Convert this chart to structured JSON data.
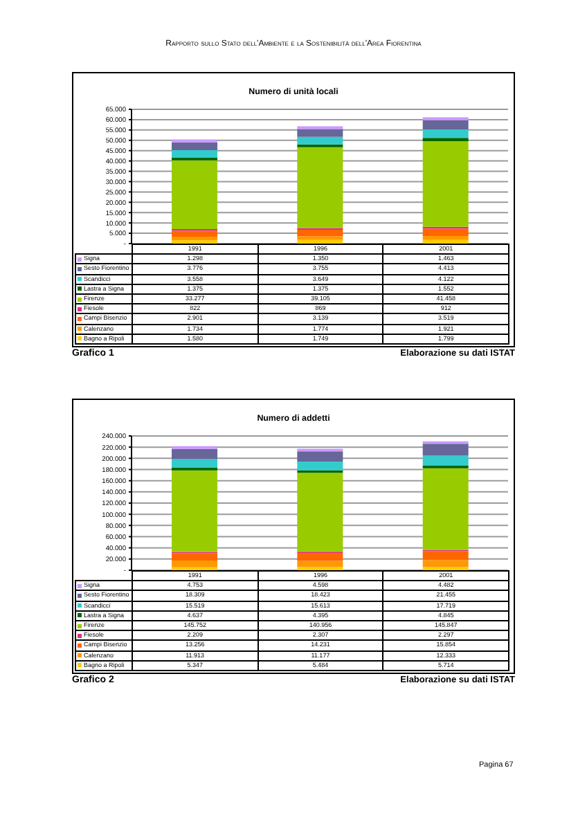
{
  "chart_data": [
    {
      "type": "bar",
      "stacked": true,
      "title": "Numero di unità locali",
      "categories": [
        "1991",
        "1996",
        "2001"
      ],
      "series": [
        {
          "name": "Bagno a Ripoli",
          "color": "#ffcc00",
          "values": [
            1580,
            1749,
            1799
          ],
          "value_labels": [
            "1.580",
            "1.749",
            "1.799"
          ]
        },
        {
          "name": "Calenzano",
          "color": "#ff9900",
          "values": [
            1734,
            1774,
            1921
          ],
          "value_labels": [
            "1.734",
            "1.774",
            "1.921"
          ]
        },
        {
          "name": "Campi Bisenzio",
          "color": "#ff6600",
          "values": [
            2901,
            3139,
            3519
          ],
          "value_labels": [
            "2.901",
            "3.139",
            "3.519"
          ]
        },
        {
          "name": "Fiesole",
          "color": "#e0307a",
          "values": [
            822,
            869,
            912
          ],
          "value_labels": [
            "822",
            "869",
            "912"
          ]
        },
        {
          "name": "Firenze",
          "color": "#99cc00",
          "values": [
            33277,
            39105,
            41458
          ],
          "value_labels": [
            "33.277",
            "39.105",
            "41.458"
          ]
        },
        {
          "name": "Lastra a Signa",
          "color": "#006600",
          "values": [
            1375,
            1375,
            1552
          ],
          "value_labels": [
            "1.375",
            "1.375",
            "1.552"
          ]
        },
        {
          "name": "Scandicci",
          "color": "#33cccc",
          "values": [
            3558,
            3649,
            4122
          ],
          "value_labels": [
            "3.558",
            "3.649",
            "4.122"
          ]
        },
        {
          "name": "Sesto Fiorentino",
          "color": "#666699",
          "values": [
            3776,
            3755,
            4413
          ],
          "value_labels": [
            "3.776",
            "3.755",
            "4.413"
          ]
        },
        {
          "name": "Signa",
          "color": "#cc99ff",
          "values": [
            1298,
            1350,
            1463
          ],
          "value_labels": [
            "1.298",
            "1.350",
            "1.463"
          ]
        }
      ],
      "ylim": [
        0,
        65000
      ],
      "yticks": [
        {
          "value": 0,
          "label": "-"
        },
        {
          "value": 5000,
          "label": "5.000"
        },
        {
          "value": 10000,
          "label": "10.000"
        },
        {
          "value": 15000,
          "label": "15.000"
        },
        {
          "value": 20000,
          "label": "20.000"
        },
        {
          "value": 25000,
          "label": "25.000"
        },
        {
          "value": 30000,
          "label": "30.000"
        },
        {
          "value": 35000,
          "label": "35.000"
        },
        {
          "value": 40000,
          "label": "40.000"
        },
        {
          "value": 45000,
          "label": "45.000"
        },
        {
          "value": 50000,
          "label": "50.000"
        },
        {
          "value": 55000,
          "label": "55.000"
        },
        {
          "value": 60000,
          "label": "60.000"
        },
        {
          "value": 65000,
          "label": "65.000"
        }
      ],
      "grid": "y",
      "legend": "bottom",
      "annotations": [
        "Rapporto sullo Stato dell'Ambiente e la Sostenibilità dell'Area Fiorentina",
        "Grafico 1",
        "Elaborazione su dati ISTAT"
      ]
    },
    {
      "type": "bar",
      "stacked": true,
      "title": "Numero di addetti",
      "categories": [
        "1991",
        "1996",
        "2001"
      ],
      "series": [
        {
          "name": "Bagno a Ripoli",
          "color": "#ffcc00",
          "values": [
            5347,
            5484,
            5714
          ],
          "value_labels": [
            "5.347",
            "5.484",
            "5.714"
          ]
        },
        {
          "name": "Calenzano",
          "color": "#ff9900",
          "values": [
            11913,
            11177,
            12333
          ],
          "value_labels": [
            "11.913",
            "11.177",
            "12.333"
          ]
        },
        {
          "name": "Campi Bisenzio",
          "color": "#ff6600",
          "values": [
            13256,
            14231,
            15854
          ],
          "value_labels": [
            "13.256",
            "14.231",
            "15.854"
          ]
        },
        {
          "name": "Fiesole",
          "color": "#e0307a",
          "values": [
            2209,
            2307,
            2297
          ],
          "value_labels": [
            "2.209",
            "2.307",
            "2.297"
          ]
        },
        {
          "name": "Firenze",
          "color": "#99cc00",
          "values": [
            145752,
            140956,
            145847
          ],
          "value_labels": [
            "145.752",
            "140.956",
            "145.847"
          ]
        },
        {
          "name": "Lastra a Signa",
          "color": "#006600",
          "values": [
            4637,
            4395,
            4845
          ],
          "value_labels": [
            "4.637",
            "4.395",
            "4.845"
          ]
        },
        {
          "name": "Scandicci",
          "color": "#33cccc",
          "values": [
            15519,
            15613,
            17719
          ],
          "value_labels": [
            "15.519",
            "15.613",
            "17.719"
          ]
        },
        {
          "name": "Sesto Fiorentino",
          "color": "#666699",
          "values": [
            18309,
            18423,
            21455
          ],
          "value_labels": [
            "18.309",
            "18.423",
            "21.455"
          ]
        },
        {
          "name": "Signa",
          "color": "#cc99ff",
          "values": [
            4753,
            4598,
            4482
          ],
          "value_labels": [
            "4.753",
            "4.598",
            "4.482"
          ]
        }
      ],
      "ylim": [
        0,
        240000
      ],
      "yticks": [
        {
          "value": 0,
          "label": "-"
        },
        {
          "value": 20000,
          "label": "20.000"
        },
        {
          "value": 40000,
          "label": "40.000"
        },
        {
          "value": 60000,
          "label": "60.000"
        },
        {
          "value": 80000,
          "label": "80.000"
        },
        {
          "value": 100000,
          "label": "100.000"
        },
        {
          "value": 120000,
          "label": "120.000"
        },
        {
          "value": 140000,
          "label": "140.000"
        },
        {
          "value": 160000,
          "label": "160.000"
        },
        {
          "value": 180000,
          "label": "180.000"
        },
        {
          "value": 200000,
          "label": "200.000"
        },
        {
          "value": 220000,
          "label": "220.000"
        },
        {
          "value": 240000,
          "label": "240.000"
        }
      ],
      "grid": "y",
      "legend": "bottom",
      "annotations": [
        "Grafico 2",
        "Elaborazione su dati ISTAT",
        "Pagina 67"
      ]
    }
  ]
}
